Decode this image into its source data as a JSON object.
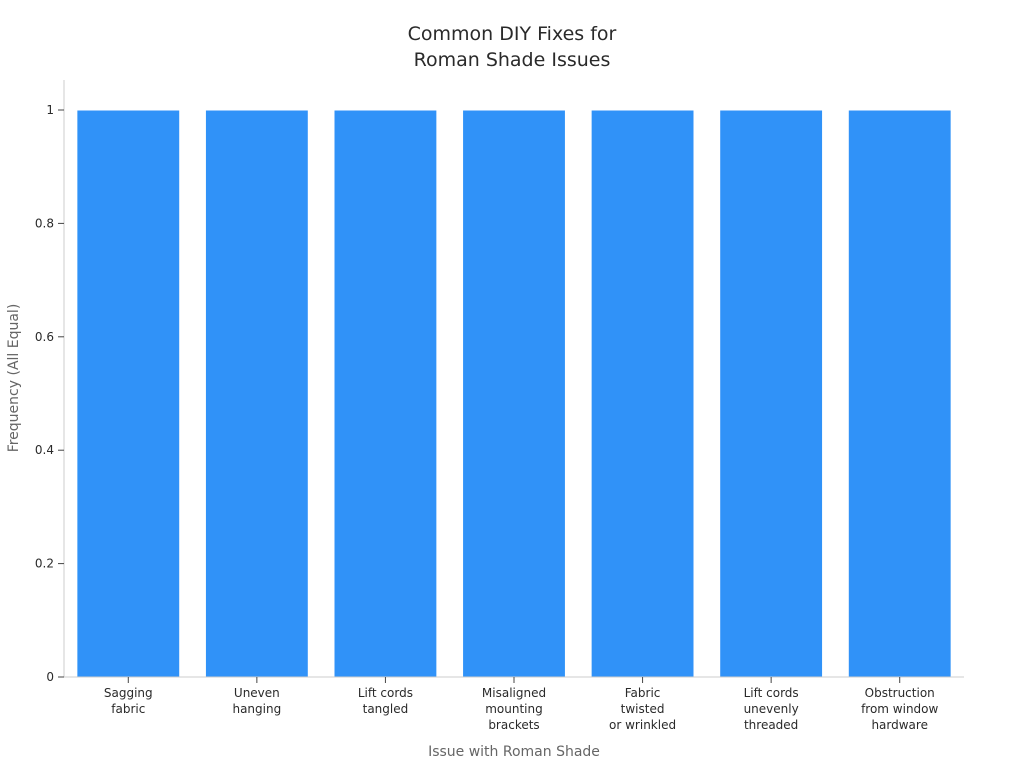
{
  "chart_data": {
    "type": "bar",
    "title_lines": [
      "Common DIY Fixes for",
      "Roman Shade Issues"
    ],
    "xlabel": "Issue with Roman Shade",
    "ylabel": "Frequency (All Equal)",
    "categories": [
      [
        "Sagging",
        "fabric"
      ],
      [
        "Uneven",
        "hanging"
      ],
      [
        "Lift cords",
        "tangled"
      ],
      [
        "Misaligned",
        "mounting",
        "brackets"
      ],
      [
        "Fabric",
        "twisted",
        "or wrinkled"
      ],
      [
        "Lift cords",
        "unevenly",
        "threaded"
      ],
      [
        "Obstruction",
        "from window",
        "hardware"
      ]
    ],
    "values": [
      1,
      1,
      1,
      1,
      1,
      1,
      1
    ],
    "ylim": [
      0,
      1
    ],
    "yticks": [
      0,
      0.2,
      0.4,
      0.6,
      0.8,
      1
    ],
    "ytick_labels": [
      "0",
      "0.2",
      "0.4",
      "0.6",
      "0.8",
      "1"
    ],
    "grid": false,
    "legend": "none",
    "colors": {
      "bar": "#3092f8",
      "axis": "#cccccc"
    }
  }
}
